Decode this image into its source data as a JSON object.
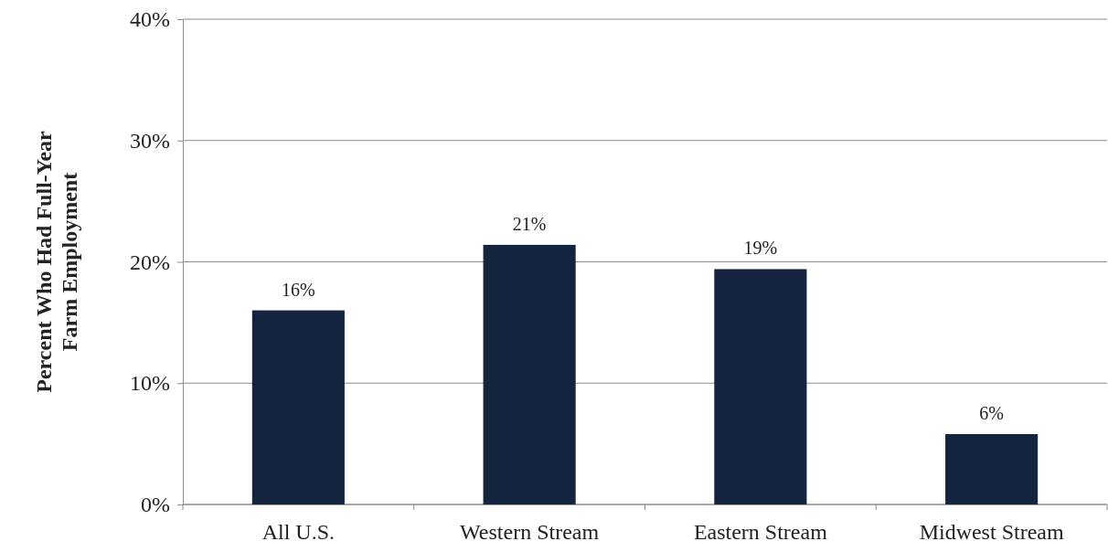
{
  "chart_data": {
    "type": "bar",
    "ylabel": "Percent Who Had Full-Year\nFarm  Employment",
    "categories": [
      "All U.S.",
      "Western Stream",
      "Eastern Stream",
      "Midwest Stream"
    ],
    "values": [
      16,
      21.4,
      19.4,
      5.8
    ],
    "value_labels": [
      "16%",
      "21%",
      "19%",
      "6%"
    ],
    "color": "#14243f",
    "ylim": [
      0,
      40
    ],
    "yticks": [
      {
        "value": 0,
        "label": "0%"
      },
      {
        "value": 10,
        "label": "10%"
      },
      {
        "value": 20,
        "label": "20%"
      },
      {
        "value": 30,
        "label": "30%"
      },
      {
        "value": 40,
        "label": "40%"
      }
    ],
    "grid": "y"
  }
}
